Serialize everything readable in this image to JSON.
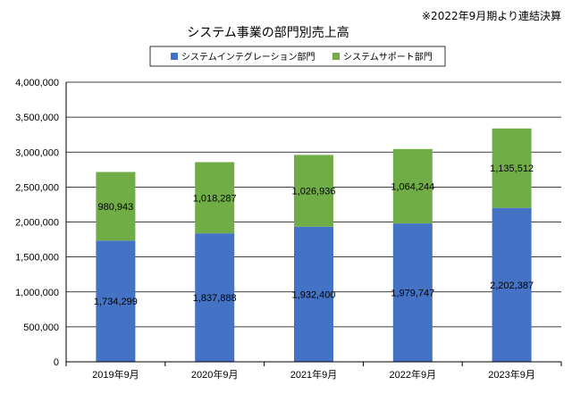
{
  "chart_data": {
    "type": "bar",
    "stacked": true,
    "title": "システム事業の部門別売上高",
    "note": "※2022年9月期より連結決算",
    "categories": [
      "2019年9月",
      "2020年9月",
      "2021年9月",
      "2022年9月",
      "2023年9月"
    ],
    "series": [
      {
        "name": "システムインテグレーション部門",
        "color": "#4472C4",
        "values": [
          1734299,
          1837888,
          1932400,
          1979747,
          2202387
        ],
        "labels": [
          "1,734,299",
          "1,837,888",
          "1,932,400",
          "1,979,747",
          "2,202,387"
        ]
      },
      {
        "name": "システムサポート部門",
        "color": "#70AD47",
        "values": [
          980943,
          1018287,
          1026936,
          1064244,
          1135512
        ],
        "labels": [
          "980,943",
          "1,018,287",
          "1,026,936",
          "1,064,244",
          "1,135,512"
        ]
      }
    ],
    "ylim": [
      0,
      4000000
    ],
    "yticks": [
      0,
      500000,
      1000000,
      1500000,
      2000000,
      2500000,
      3000000,
      3500000,
      4000000
    ],
    "ytick_labels": [
      "0",
      "500,000",
      "1,000,000",
      "1,500,000",
      "2,000,000",
      "2,500,000",
      "3,000,000",
      "3,500,000",
      "4,000,000"
    ],
    "grid": true,
    "legend": "top"
  }
}
